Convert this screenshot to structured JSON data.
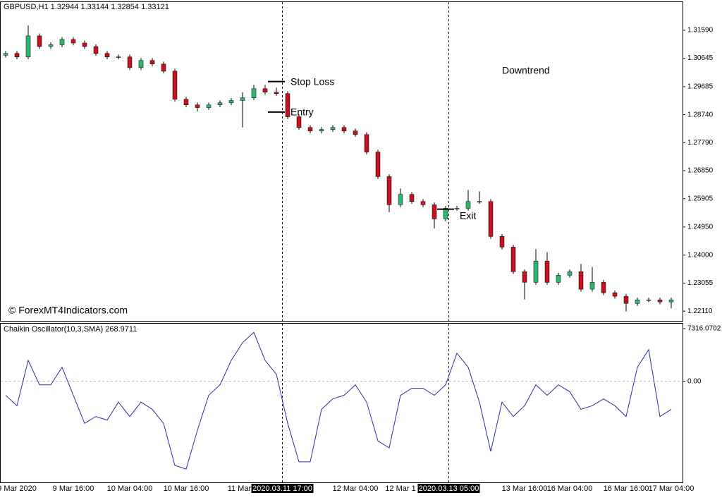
{
  "chart_data": [
    {
      "type": "candlestick",
      "title": "GBPUSD,H1  1.32944 1.33144 1.32854 1.33121",
      "watermark": "© ForexMT4Indicators.com",
      "categories": [
        null,
        "9 Mar 2020",
        null,
        null,
        null,
        null,
        "9 Mar 16:00",
        null,
        null,
        null,
        null,
        "10 Mar 04:00",
        null,
        null,
        null,
        null,
        "10 Mar 16:00",
        null,
        null,
        null,
        null,
        "11 Mar 0",
        null,
        null,
        null,
        null,
        null,
        null,
        null,
        null,
        null,
        "12 Mar 04:00",
        null,
        null,
        null,
        "12 Mar 1",
        null,
        null,
        null,
        null,
        null,
        null,
        null,
        null,
        null,
        null,
        "13 Mar 16:00",
        null,
        null,
        null,
        "16 Mar 04:00",
        null,
        null,
        null,
        null,
        "16 Mar 16:00",
        null,
        null,
        null,
        "17 Mar 04:00"
      ],
      "open": [
        1.3075,
        1.3081,
        1.3069,
        1.314,
        1.3104,
        1.311,
        1.3128,
        1.3116,
        1.3104,
        1.3081,
        1.3069,
        1.3069,
        1.3033,
        1.3057,
        1.3045,
        1.3021,
        1.2926,
        1.2907,
        1.2898,
        1.2907,
        1.2914,
        1.2922,
        1.2931,
        1.2962,
        1.295,
        1.2945,
        1.2867,
        1.2831,
        1.2819,
        1.2824,
        1.2831,
        1.2819,
        1.2807,
        1.2748,
        1.2665,
        1.257,
        1.2605,
        1.2581,
        1.257,
        1.2522,
        1.2558,
        1.2558,
        1.2581,
        1.2581,
        1.2463,
        1.2427,
        1.2344,
        1.2308,
        1.238,
        1.2308,
        1.2332,
        1.2344,
        1.2285,
        1.2308,
        1.2273,
        1.2261,
        1.2237,
        1.2249,
        1.2249,
        1.2242
      ],
      "high": [
        1.3089,
        1.3089,
        1.3175,
        1.3148,
        1.3118,
        1.3136,
        1.3136,
        1.3124,
        1.3112,
        1.3089,
        1.3077,
        1.3077,
        1.3065,
        1.3065,
        1.3053,
        1.3029,
        1.2934,
        1.2915,
        1.2915,
        1.2922,
        1.293,
        1.295,
        1.2975,
        1.2975,
        1.2965,
        1.2953,
        1.2875,
        1.2839,
        1.2832,
        1.2839,
        1.2839,
        1.2827,
        1.2815,
        1.2756,
        1.2673,
        1.2625,
        1.2613,
        1.2589,
        1.2578,
        1.2566,
        1.2566,
        1.262,
        1.2615,
        1.2589,
        1.2471,
        1.2435,
        1.2352,
        1.242,
        1.241,
        1.234,
        1.2352,
        1.237,
        1.236,
        1.2316,
        1.2281,
        1.2269,
        1.2257,
        1.2257,
        1.2257,
        1.2257
      ],
      "low": [
        1.3067,
        1.3061,
        1.3061,
        1.3096,
        1.3096,
        1.3102,
        1.3108,
        1.3096,
        1.3073,
        1.3061,
        1.3061,
        1.3025,
        1.3025,
        1.3037,
        1.3013,
        1.2918,
        1.2899,
        1.2885,
        1.289,
        1.2899,
        1.2906,
        1.2831,
        1.2923,
        1.2942,
        1.2937,
        1.2859,
        1.2823,
        1.2811,
        1.2811,
        1.2816,
        1.2811,
        1.2799,
        1.274,
        1.2657,
        1.2545,
        1.2562,
        1.2573,
        1.2562,
        1.249,
        1.2514,
        1.255,
        1.255,
        1.2573,
        1.2455,
        1.2419,
        1.2336,
        1.225,
        1.23,
        1.23,
        1.23,
        1.2324,
        1.2277,
        1.2277,
        1.2265,
        1.2253,
        1.221,
        1.2229,
        1.2241,
        1.2234,
        1.222
      ],
      "close": [
        1.3081,
        1.3069,
        1.314,
        1.3104,
        1.311,
        1.3128,
        1.3116,
        1.3104,
        1.3081,
        1.3069,
        1.3069,
        1.3033,
        1.3057,
        1.3045,
        1.3021,
        1.2926,
        1.2907,
        1.2898,
        1.2907,
        1.2914,
        1.2922,
        1.2931,
        1.2962,
        1.295,
        1.2945,
        1.2867,
        1.2831,
        1.2819,
        1.2824,
        1.2831,
        1.2819,
        1.2807,
        1.2748,
        1.2665,
        1.257,
        1.2605,
        1.2581,
        1.257,
        1.2522,
        1.2558,
        1.2558,
        1.2581,
        1.2581,
        1.2463,
        1.2427,
        1.2344,
        1.2308,
        1.238,
        1.2308,
        1.2332,
        1.2344,
        1.2285,
        1.2308,
        1.2273,
        1.2261,
        1.2237,
        1.2249,
        1.2249,
        1.2242,
        1.2249
      ],
      "up_color": "#2eb872",
      "down_color": "#c4121f",
      "ylim": [
        1.2178,
        1.3254
      ],
      "yticks": [
        {
          "value": 1.3159,
          "label": "1.31590"
        },
        1.30645,
        {
          "value": 1.29685,
          "label": "1.29685"
        },
        {
          "value": 1.2874,
          "label": "1.28740"
        },
        {
          "value": 1.2779,
          "label": "1.27790"
        },
        {
          "value": 1.2685,
          "label": "1.26850"
        },
        1.25905,
        {
          "value": 1.2495,
          "label": "1.24950"
        },
        {
          "value": 1.24,
          "label": "1.24000"
        },
        1.23055,
        {
          "value": 1.2211,
          "label": "1.22110"
        }
      ],
      "annotations": [
        {
          "text": "Stop Loss",
          "candle": 24,
          "price": 1.2986
        },
        {
          "text": "Entry",
          "candle": 24,
          "price": 1.2883
        },
        {
          "text": "Exit",
          "candle": 39,
          "price": 1.2555
        }
      ],
      "trend_label": "Downtrend",
      "crosshair_labels": [
        "2020.03.11 17:00",
        "2020.03.13 05:00"
      ]
    },
    {
      "type": "line",
      "title": "Chaikin Oscillator(10,3,SMA) 268.9711",
      "color": "#2a2aaa",
      "values": [
        -1950,
        -3400,
        2900,
        -500,
        -500,
        1950,
        -1950,
        -5850,
        -4900,
        -5400,
        -2900,
        -4900,
        -2900,
        -3900,
        -5850,
        -11700,
        -12200,
        -6800,
        -1950,
        -500,
        2900,
        5360,
        6800,
        2900,
        975,
        -5850,
        -11200,
        -11200,
        -3900,
        -2440,
        -1950,
        -500,
        -2900,
        -8300,
        -9260,
        -1950,
        -975,
        -975,
        -1950,
        -500,
        3900,
        1950,
        -2900,
        -9750,
        -2900,
        -4900,
        -3400,
        -500,
        -1950,
        -500,
        -1450,
        -3900,
        -3400,
        -2440,
        -3400,
        -4900,
        1950,
        4400,
        -4900,
        -3900
      ],
      "ylim": [
        -14050,
        8000
      ],
      "yticks": [
        7316.0702,
        {
          "value": 0,
          "label": "0.00"
        }
      ]
    }
  ]
}
